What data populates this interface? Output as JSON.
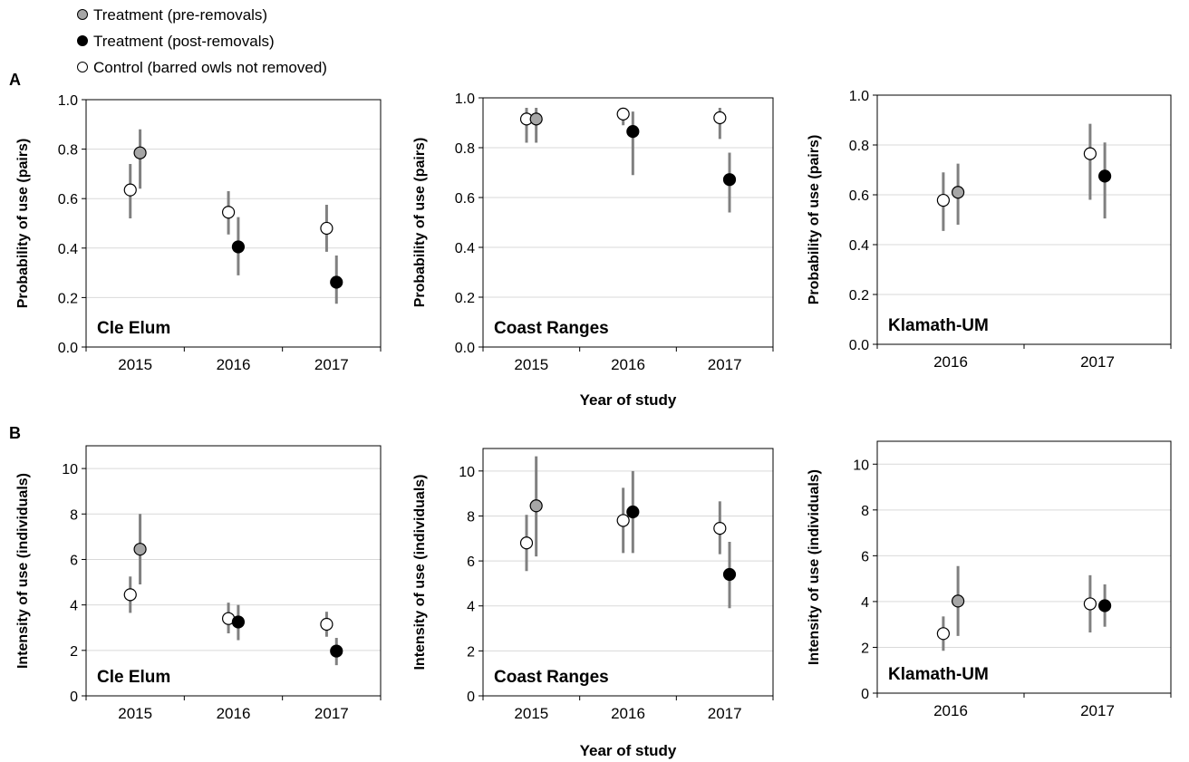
{
  "legend": [
    {
      "label": "Treatment (pre-removals)",
      "fill": "#a6a6a6"
    },
    {
      "label": "Treatment (post-removals)",
      "fill": "#000000"
    },
    {
      "label": "Control (barred owls not removed)",
      "fill": "#ffffff"
    }
  ],
  "colors": {
    "whisker": "#808080",
    "grid": "#d9d9d9",
    "marker_stroke": "#000000"
  },
  "row_labels": {
    "a": "A",
    "b": "B"
  },
  "xlabel": "Year of study",
  "chart_data": [
    {
      "type": "scatter",
      "row": "A",
      "site": "Cle Elum",
      "ylabel": "Probability of use (pairs)",
      "ylim": [
        0,
        1
      ],
      "yticks": [
        "0.0",
        "0.2",
        "0.4",
        "0.6",
        "0.8",
        "1.0"
      ],
      "grid": true,
      "categories": [
        "2015",
        "2016",
        "2017"
      ],
      "series": [
        {
          "name": "Control (barred owls not removed)",
          "values": [
            0.635,
            0.545,
            0.48
          ],
          "lower": [
            0.52,
            0.455,
            0.385
          ],
          "upper": [
            0.74,
            0.63,
            0.575
          ]
        },
        {
          "name": "Treatment (pre-removals)",
          "values": [
            0.785,
            null,
            null
          ],
          "lower": [
            0.64,
            null,
            null
          ],
          "upper": [
            0.88,
            null,
            null
          ]
        },
        {
          "name": "Treatment (post-removals)",
          "values": [
            null,
            0.405,
            0.262
          ],
          "lower": [
            null,
            0.29,
            0.175
          ],
          "upper": [
            null,
            0.525,
            0.37
          ]
        }
      ]
    },
    {
      "type": "scatter",
      "row": "A",
      "site": "Coast Ranges",
      "ylabel": "Probability of use (pairs)",
      "ylim": [
        0,
        1
      ],
      "yticks": [
        "0.0",
        "0.2",
        "0.4",
        "0.6",
        "0.8",
        "1.0"
      ],
      "grid": true,
      "categories": [
        "2015",
        "2016",
        "2017"
      ],
      "series": [
        {
          "name": "Control (barred owls not removed)",
          "values": [
            0.915,
            0.935,
            0.92
          ],
          "lower": [
            0.82,
            0.89,
            0.835
          ],
          "upper": [
            0.96,
            0.96,
            0.96
          ]
        },
        {
          "name": "Treatment (pre-removals)",
          "values": [
            0.915,
            null,
            null
          ],
          "lower": [
            0.82,
            null,
            null
          ],
          "upper": [
            0.96,
            null,
            null
          ]
        },
        {
          "name": "Treatment (post-removals)",
          "values": [
            null,
            0.865,
            0.672
          ],
          "lower": [
            null,
            0.69,
            0.54
          ],
          "upper": [
            null,
            0.945,
            0.78
          ]
        }
      ]
    },
    {
      "type": "scatter",
      "row": "A",
      "site": "Klamath-UM",
      "ylabel": "Probability of use (pairs)",
      "ylim": [
        0,
        1
      ],
      "yticks": [
        "0.0",
        "0.2",
        "0.4",
        "0.6",
        "0.8",
        "1.0"
      ],
      "grid": true,
      "categories": [
        "2016",
        "2017"
      ],
      "series": [
        {
          "name": "Control (barred owls not removed)",
          "values": [
            0.578,
            0.765
          ],
          "lower": [
            0.455,
            0.58
          ],
          "upper": [
            0.69,
            0.885
          ]
        },
        {
          "name": "Treatment (pre-removals)",
          "values": [
            0.61,
            null
          ],
          "lower": [
            0.48,
            null
          ],
          "upper": [
            0.725,
            null
          ]
        },
        {
          "name": "Treatment (post-removals)",
          "values": [
            null,
            0.675
          ],
          "lower": [
            null,
            0.505
          ],
          "upper": [
            null,
            0.81
          ]
        }
      ]
    },
    {
      "type": "scatter",
      "row": "B",
      "site": "Cle Elum",
      "ylabel": "Intensity of use (individuals)",
      "ylim": [
        0,
        11
      ],
      "yticks": [
        "0",
        "2",
        "4",
        "6",
        "8",
        "10"
      ],
      "grid": true,
      "categories": [
        "2015",
        "2016",
        "2017"
      ],
      "series": [
        {
          "name": "Control (barred owls not removed)",
          "values": [
            4.45,
            3.4,
            3.15
          ],
          "lower": [
            3.65,
            2.75,
            2.6
          ],
          "upper": [
            5.25,
            4.1,
            3.7
          ]
        },
        {
          "name": "Treatment (pre-removals)",
          "values": [
            6.45,
            null,
            null
          ],
          "lower": [
            4.9,
            null,
            null
          ],
          "upper": [
            8.0,
            null,
            null
          ]
        },
        {
          "name": "Treatment (post-removals)",
          "values": [
            null,
            3.25,
            1.97
          ],
          "lower": [
            null,
            2.45,
            1.35
          ],
          "upper": [
            null,
            4.0,
            2.55
          ]
        }
      ]
    },
    {
      "type": "scatter",
      "row": "B",
      "site": "Coast Ranges",
      "ylabel": "Intensity of use (individuals)",
      "ylim": [
        0,
        11
      ],
      "yticks": [
        "0",
        "2",
        "4",
        "6",
        "8",
        "10"
      ],
      "grid": true,
      "categories": [
        "2015",
        "2016",
        "2017"
      ],
      "series": [
        {
          "name": "Control (barred owls not removed)",
          "values": [
            6.8,
            7.8,
            7.45
          ],
          "lower": [
            5.55,
            6.35,
            6.3
          ],
          "upper": [
            8.05,
            9.25,
            8.65
          ]
        },
        {
          "name": "Treatment (pre-removals)",
          "values": [
            8.45,
            null,
            null
          ],
          "lower": [
            6.2,
            null,
            null
          ],
          "upper": [
            10.65,
            null,
            null
          ]
        },
        {
          "name": "Treatment (post-removals)",
          "values": [
            null,
            8.18,
            5.4
          ],
          "lower": [
            null,
            6.35,
            3.9
          ],
          "upper": [
            null,
            10.0,
            6.85
          ]
        }
      ]
    },
    {
      "type": "scatter",
      "row": "B",
      "site": "Klamath-UM",
      "ylabel": "Intensity of use (individuals)",
      "ylim": [
        0,
        11
      ],
      "yticks": [
        "0",
        "2",
        "4",
        "6",
        "8",
        "10"
      ],
      "grid": true,
      "categories": [
        "2016",
        "2017"
      ],
      "series": [
        {
          "name": "Control (barred owls not removed)",
          "values": [
            2.6,
            3.9
          ],
          "lower": [
            1.85,
            2.65
          ],
          "upper": [
            3.35,
            5.15
          ]
        },
        {
          "name": "Treatment (pre-removals)",
          "values": [
            4.02,
            null
          ],
          "lower": [
            2.5,
            null
          ],
          "upper": [
            5.55,
            null
          ]
        },
        {
          "name": "Treatment (post-removals)",
          "values": [
            null,
            3.82
          ],
          "lower": [
            null,
            2.9
          ],
          "upper": [
            null,
            4.75
          ]
        }
      ]
    }
  ]
}
